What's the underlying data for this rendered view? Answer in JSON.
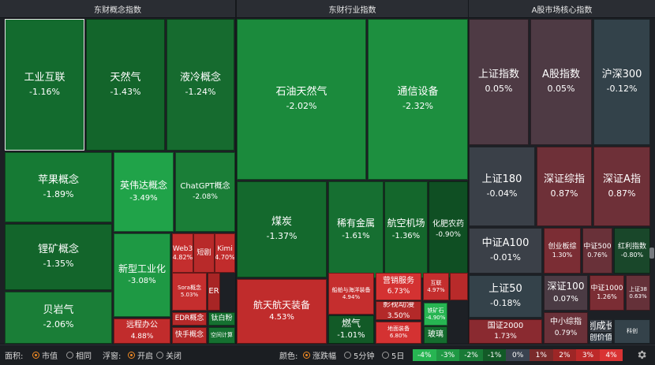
{
  "panels": [
    {
      "title": "东财概念指数",
      "tiles": [
        {
          "name": "工业互联",
          "value": "-1.16%",
          "color": "#136b2e",
          "size": "lg",
          "selected": true
        },
        {
          "name": "天然气",
          "value": "-1.43%",
          "color": "#13652b",
          "size": "lg"
        },
        {
          "name": "液冷概念",
          "value": "-1.24%",
          "color": "#166b2f",
          "size": "lg"
        },
        {
          "name": "苹果概念",
          "value": "-1.89%",
          "color": "#167a34",
          "size": "lg"
        },
        {
          "name": "英伟达概念",
          "value": "-3.49%",
          "color": "#20a349",
          "size": "md"
        },
        {
          "name": "ChatGPT概念",
          "value": "-2.08%",
          "color": "#1a7e37",
          "size": "sm"
        },
        {
          "name": "锂矿概念",
          "value": "-1.35%",
          "color": "#13652b",
          "size": "lg"
        },
        {
          "name": "新型工业化",
          "value": "-3.08%",
          "color": "#1e9944",
          "size": "md"
        },
        {
          "name": "Web3",
          "value": "4.82%",
          "color": "#c42e2e",
          "size": "xs"
        },
        {
          "name": "短剧",
          "value": "",
          "color": "#b82a2a",
          "size": "xs"
        },
        {
          "name": "Kimi",
          "value": "4.70%",
          "color": "#c12c2c",
          "size": "xs"
        },
        {
          "name": "Sora概念",
          "value": "5.03%",
          "color": "#c52e2e",
          "size": "xxs"
        },
        {
          "name": "ER",
          "value": "",
          "color": "#a82525",
          "size": "sm"
        },
        {
          "name": "EDR概念",
          "value": "",
          "color": "#b52929",
          "size": "xs"
        },
        {
          "name": "钛白粉",
          "value": "",
          "color": "#157030",
          "size": "xs"
        },
        {
          "name": "贝岩气",
          "value": "-2.06%",
          "color": "#1a7e37",
          "size": "lg"
        },
        {
          "name": "远程办公",
          "value": "4.88%",
          "color": "#c12c2c",
          "size": "sm"
        },
        {
          "name": "快手概念",
          "value": "",
          "color": "#b52929",
          "size": "xs"
        },
        {
          "name": "空间计算",
          "value": "",
          "color": "#157030",
          "size": "xxs"
        }
      ]
    },
    {
      "title": "东财行业指数",
      "tiles": [
        {
          "name": "石油天然气",
          "value": "-2.02%",
          "color": "#1b8a3c",
          "size": "lg"
        },
        {
          "name": "通信设备",
          "value": "-2.32%",
          "color": "#1d8f3f",
          "size": "lg"
        },
        {
          "name": "煤炭",
          "value": "-1.37%",
          "color": "#14692d",
          "size": "lg"
        },
        {
          "name": "稀有金属",
          "value": "-1.61%",
          "color": "#166f31",
          "size": "md"
        },
        {
          "name": "航空机场",
          "value": "-1.36%",
          "color": "#14672c",
          "size": "md"
        },
        {
          "name": "化肥农药",
          "value": "-0.90%",
          "color": "#0f4f23",
          "size": "sm"
        },
        {
          "name": "航天航天装备",
          "value": "4.53%",
          "color": "#c02c2c",
          "size": "md"
        },
        {
          "name": "船舶与海洋装备",
          "value": "4.94%",
          "color": "#c52e2e",
          "size": "xxs"
        },
        {
          "name": "营销服务",
          "value": "6.73%",
          "color": "#d43232",
          "size": "sm"
        },
        {
          "name": "互联",
          "value": "4.97%",
          "color": "#c42e2e",
          "size": "xxs"
        },
        {
          "name": "",
          "value": "",
          "color": "#b82a2a",
          "size": "xxs"
        },
        {
          "name": "影视动漫",
          "value": "3.50%",
          "color": "#b32929",
          "size": "sm"
        },
        {
          "name": "燃气",
          "value": "-1.01%",
          "color": "#125a27",
          "size": "md"
        },
        {
          "name": "地面装备",
          "value": "6.80%",
          "color": "#d43232",
          "size": "xxs"
        },
        {
          "name": "铁矿石",
          "value": "-4.90%",
          "color": "#27b552",
          "size": "xxs"
        },
        {
          "name": "玻璃",
          "value": "",
          "color": "#156d2f",
          "size": "sm"
        }
      ]
    },
    {
      "title": "A股市场核心指数",
      "tiles": [
        {
          "name": "上证指数",
          "value": "0.05%",
          "color": "#4e3a44",
          "size": "lg"
        },
        {
          "name": "A股指数",
          "value": "0.05%",
          "color": "#4e3a44",
          "size": "lg"
        },
        {
          "name": "沪深300",
          "value": "-0.12%",
          "color": "#33424a",
          "size": "lg"
        },
        {
          "name": "上证180",
          "value": "-0.04%",
          "color": "#3a4048",
          "size": "lg"
        },
        {
          "name": "深证综指",
          "value": "0.87%",
          "color": "#6e3038",
          "size": "lg"
        },
        {
          "name": "深证A指",
          "value": "0.87%",
          "color": "#6e3038",
          "size": "lg"
        },
        {
          "name": "中证A100",
          "value": "-0.01%",
          "color": "#3b4048",
          "size": "lg"
        },
        {
          "name": "创业板综",
          "value": "1.30%",
          "color": "#7b2d34",
          "size": "xs"
        },
        {
          "name": "中证500",
          "value": "0.76%",
          "color": "#693139",
          "size": "xs"
        },
        {
          "name": "红利指数",
          "value": "-0.80%",
          "color": "#19472a",
          "size": "xs"
        },
        {
          "name": "上证50",
          "value": "-0.18%",
          "color": "#34424a",
          "size": "lg"
        },
        {
          "name": "深证100",
          "value": "0.07%",
          "color": "#4b3b44",
          "size": "md"
        },
        {
          "name": "中证1000",
          "value": "1.26%",
          "color": "#7b2d34",
          "size": "xs"
        },
        {
          "name": "上证38",
          "value": "0.63%",
          "color": "#653139",
          "size": "xxs"
        },
        {
          "name": "国证2000",
          "value": "1.73%",
          "color": "#8a2a30",
          "size": "sm"
        },
        {
          "name": "中小综指",
          "value": "0.79%",
          "color": "#6a3139",
          "size": "sm"
        },
        {
          "name": "创成长",
          "value": "",
          "color": "#3b4048",
          "size": "md"
        },
        {
          "name": "创价值",
          "value": "",
          "color": "#37404a",
          "size": "sm"
        },
        {
          "name": "科创",
          "value": "",
          "color": "#34424a",
          "size": "xxs"
        }
      ]
    }
  ],
  "statusbar": {
    "area_label": "面积:",
    "area_options": [
      "市值",
      "相同"
    ],
    "float_label": "浮窗:",
    "float_options": [
      "开启",
      "关闭"
    ],
    "color_label": "颜色:",
    "color_options": [
      "涨跌幅",
      "5分钟",
      "5日"
    ],
    "legend": [
      {
        "label": "-4%",
        "color": "#27b552"
      },
      {
        "label": "-3%",
        "color": "#1f9944"
      },
      {
        "label": "-2%",
        "color": "#187a36"
      },
      {
        "label": "-1%",
        "color": "#125a27"
      },
      {
        "label": "0%",
        "color": "#3a4350"
      },
      {
        "label": "1%",
        "color": "#7a2a2a"
      },
      {
        "label": "2%",
        "color": "#9d2626"
      },
      {
        "label": "3%",
        "color": "#bd2929"
      },
      {
        "label": "4%",
        "color": "#d93333"
      }
    ],
    "settings_icon": "gear-icon"
  }
}
